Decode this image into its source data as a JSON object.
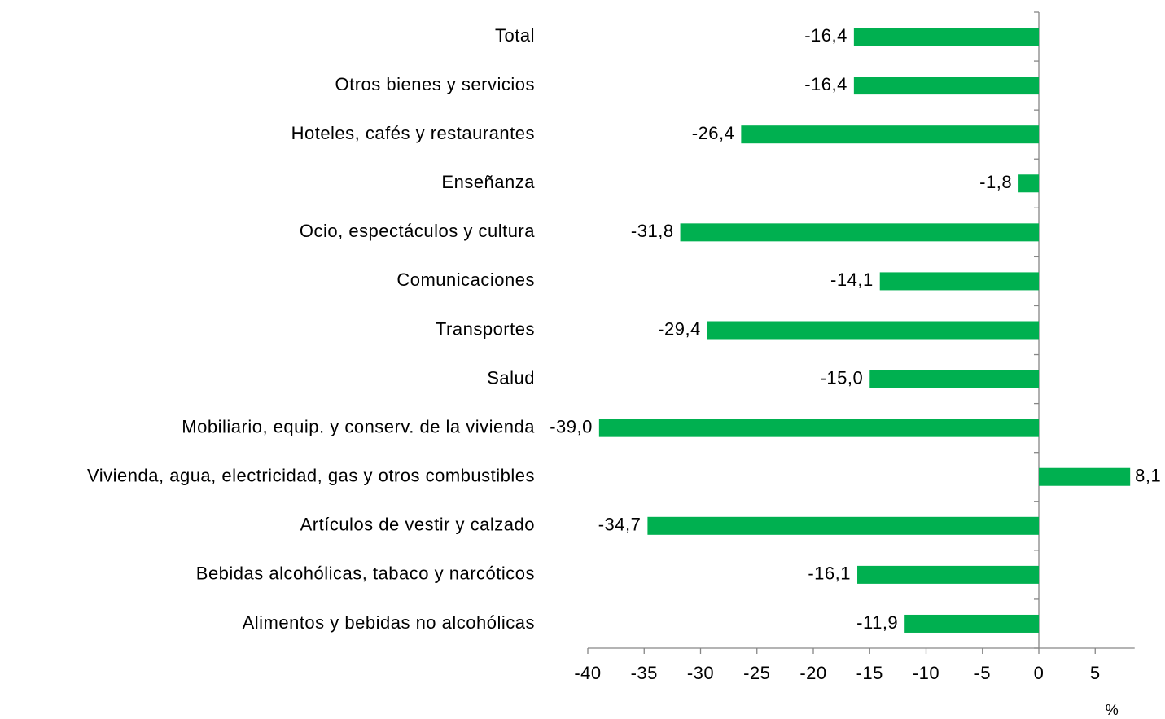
{
  "chart_data": {
    "type": "barh",
    "categories": [
      "Total",
      "Otros bienes y servicios",
      "Hoteles, cafés y restaurantes",
      "Enseñanza",
      "Ocio, espectáculos y cultura",
      "Comunicaciones",
      "Transportes",
      "Salud",
      "Mobiliario, equip. y conserv. de la vivienda",
      "Vivienda, agua, electricidad, gas y otros combustibles",
      "Artículos de vestir y calzado",
      "Bebidas alcohólicas, tabaco y narcóticos",
      "Alimentos y bebidas no alcohólicas"
    ],
    "values": [
      -16.4,
      -16.4,
      -26.4,
      -1.8,
      -31.8,
      -14.1,
      -29.4,
      -15.0,
      -39.0,
      8.1,
      -34.7,
      -16.1,
      -11.9
    ],
    "value_labels": [
      "-16,4",
      "-16,4",
      "-26,4",
      "-1,8",
      "-31,8",
      "-14,1",
      "-29,4",
      "-15,0",
      "-39,0",
      "8,1",
      "-34,7",
      "-16,1",
      "-11,9"
    ],
    "color": "#00b050",
    "xlim": [
      -40,
      8.5
    ],
    "xticks": [
      -40,
      -35,
      -30,
      -25,
      -20,
      -15,
      -10,
      -5,
      0,
      5
    ],
    "xlabel": "%"
  }
}
